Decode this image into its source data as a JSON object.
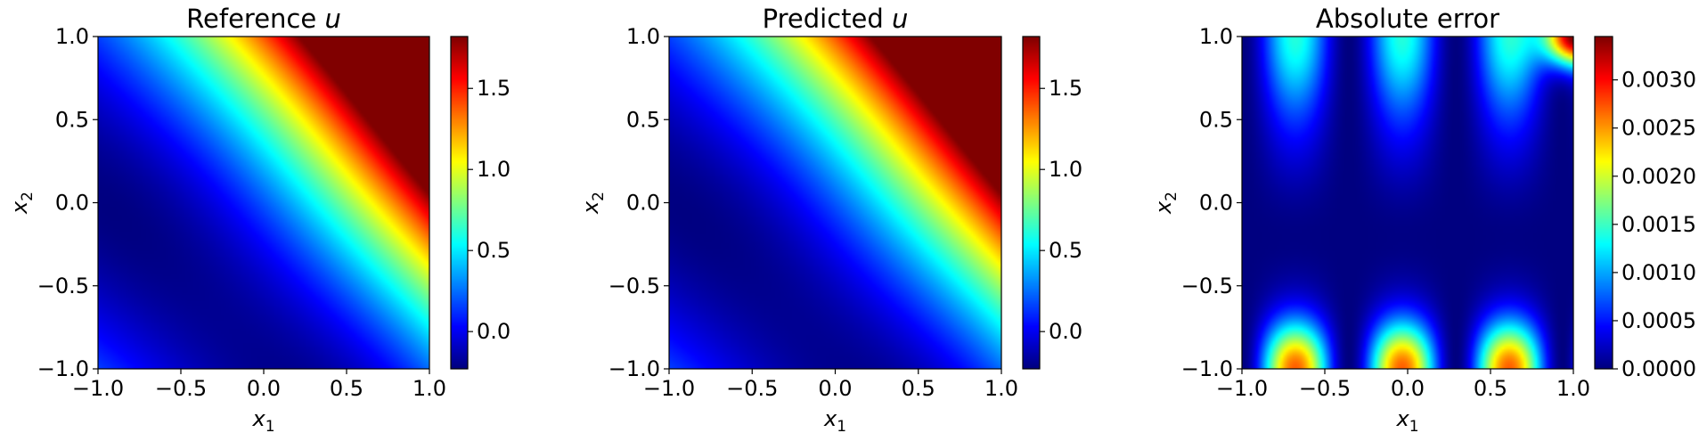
{
  "chart_data": [
    {
      "type": "heatmap",
      "title": "Reference u",
      "title_parts": {
        "text": "Reference ",
        "math": "u"
      },
      "xlabel": {
        "base": "x",
        "sub": "1"
      },
      "ylabel": {
        "base": "x",
        "sub": "2"
      },
      "xlim": [
        -1.0,
        1.0
      ],
      "ylim": [
        -1.0,
        1.0
      ],
      "xticks": [
        "−1.0",
        "−0.5",
        "0.0",
        "0.5",
        "1.0"
      ],
      "xtick_values": [
        -1.0,
        -0.5,
        0.0,
        0.5,
        1.0
      ],
      "yticks": [
        "−1.0",
        "−0.5",
        "0.0",
        "0.5",
        "1.0"
      ],
      "ytick_values": [
        -1.0,
        -0.5,
        0.0,
        0.5,
        1.0
      ],
      "colormap": "jet",
      "colorbar": {
        "vmin": -0.23,
        "vmax": 1.82,
        "ticks": [
          "0.0",
          "0.5",
          "1.0",
          "1.5"
        ],
        "tick_values": [
          0.0,
          0.5,
          1.0,
          1.5
        ]
      },
      "field": "u(x1,x2), smallest along the diagonal x1+x2 ≈ -1, increasing toward the top-right corner"
    },
    {
      "type": "heatmap",
      "title": "Predicted u",
      "title_parts": {
        "text": "Predicted ",
        "math": "u"
      },
      "xlabel": {
        "base": "x",
        "sub": "1"
      },
      "ylabel": {
        "base": "x",
        "sub": "2"
      },
      "xlim": [
        -1.0,
        1.0
      ],
      "ylim": [
        -1.0,
        1.0
      ],
      "xticks": [
        "−1.0",
        "−0.5",
        "0.0",
        "0.5",
        "1.0"
      ],
      "xtick_values": [
        -1.0,
        -0.5,
        0.0,
        0.5,
        1.0
      ],
      "yticks": [
        "−1.0",
        "−0.5",
        "0.0",
        "0.5",
        "1.0"
      ],
      "ytick_values": [
        -1.0,
        -0.5,
        0.0,
        0.5,
        1.0
      ],
      "colormap": "jet",
      "colorbar": {
        "vmin": -0.23,
        "vmax": 1.82,
        "ticks": [
          "0.0",
          "0.5",
          "1.0",
          "1.5"
        ],
        "tick_values": [
          0.0,
          0.5,
          1.0,
          1.5
        ]
      },
      "field": "same pattern as the reference field"
    },
    {
      "type": "heatmap",
      "title": "Absolute error",
      "title_parts": {
        "text": "Absolute error",
        "math": ""
      },
      "xlabel": {
        "base": "x",
        "sub": "1"
      },
      "ylabel": {
        "base": "x",
        "sub": "2"
      },
      "xlim": [
        -1.0,
        1.0
      ],
      "ylim": [
        -1.0,
        1.0
      ],
      "xticks": [
        "−1.0",
        "−0.5",
        "0.0",
        "0.5",
        "1.0"
      ],
      "xtick_values": [
        -1.0,
        -0.5,
        0.0,
        0.5,
        1.0
      ],
      "yticks": [
        "−1.0",
        "−0.5",
        "0.0",
        "0.5",
        "1.0"
      ],
      "ytick_values": [
        -1.0,
        -0.5,
        0.0,
        0.5,
        1.0
      ],
      "colormap": "jet",
      "colorbar": {
        "vmin": 0.0,
        "vmax": 0.00345,
        "ticks": [
          "0.0000",
          "0.0005",
          "0.0010",
          "0.0015",
          "0.0020",
          "0.0025",
          "0.0030"
        ],
        "tick_values": [
          0.0,
          0.0005,
          0.001,
          0.0015,
          0.002,
          0.0025,
          0.003
        ]
      },
      "field": "oscillatory error, maxima near the bottom and top boundaries and the top-right corner (~0.0034)"
    }
  ]
}
